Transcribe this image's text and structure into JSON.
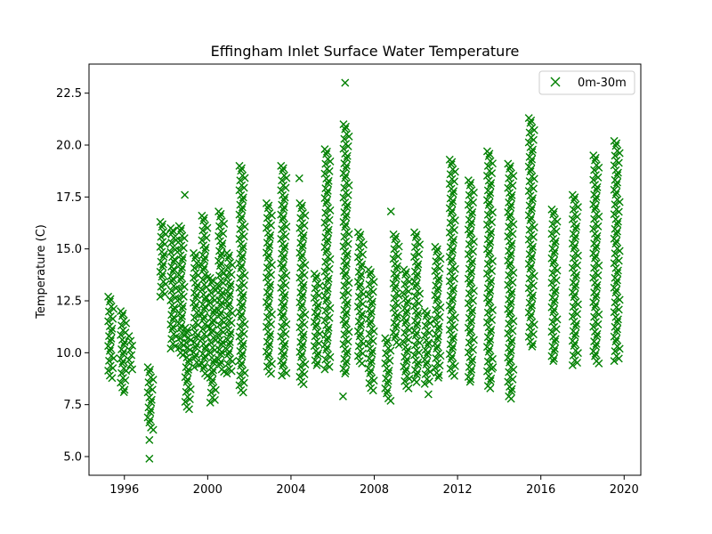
{
  "chart_data": {
    "type": "scatter",
    "title": "Effingham Inlet Surface Water Temperature",
    "xlabel": "",
    "ylabel": "Temperature (C)",
    "xlim": [
      1994.3,
      2020.8
    ],
    "ylim": [
      4.1,
      23.9
    ],
    "xticks": [
      1996,
      2000,
      2004,
      2008,
      2012,
      2016,
      2020
    ],
    "yticks": [
      5.0,
      7.5,
      10.0,
      12.5,
      15.0,
      17.5,
      20.0,
      22.5
    ],
    "grid": false,
    "legend": {
      "position": "top-right",
      "entries": [
        "0m-30m"
      ]
    },
    "marker": "x",
    "color": "#008000",
    "series": [
      {
        "name": "0m-30m",
        "columns": [
          {
            "x": 1995.3,
            "min": 8.9,
            "max": 12.7
          },
          {
            "x": 1995.9,
            "min": 8.1,
            "max": 12.0
          },
          {
            "x": 1996.3,
            "min": 9.2,
            "max": 10.8
          },
          {
            "x": 1997.2,
            "min": 6.4,
            "max": 9.3
          },
          {
            "x": 1997.8,
            "min": 12.7,
            "max": 16.3
          },
          {
            "x": 1998.3,
            "min": 10.2,
            "max": 16.0
          },
          {
            "x": 1998.7,
            "min": 10.0,
            "max": 16.1
          },
          {
            "x": 1999.0,
            "min": 7.4,
            "max": 11.2
          },
          {
            "x": 1999.4,
            "min": 9.3,
            "max": 14.8
          },
          {
            "x": 1999.8,
            "min": 9.0,
            "max": 16.6
          },
          {
            "x": 2000.2,
            "min": 7.6,
            "max": 13.6
          },
          {
            "x": 2000.6,
            "min": 9.2,
            "max": 16.8
          },
          {
            "x": 2001.0,
            "min": 9.0,
            "max": 14.8
          },
          {
            "x": 2001.6,
            "min": 8.2,
            "max": 19.0
          },
          {
            "x": 2002.9,
            "min": 9.1,
            "max": 17.2
          },
          {
            "x": 2003.6,
            "min": 8.9,
            "max": 19.0
          },
          {
            "x": 2004.5,
            "min": 8.6,
            "max": 17.2
          },
          {
            "x": 2005.2,
            "min": 9.4,
            "max": 13.8
          },
          {
            "x": 2005.7,
            "min": 9.2,
            "max": 19.8
          },
          {
            "x": 2006.6,
            "min": 9.0,
            "max": 21.0
          },
          {
            "x": 2007.3,
            "min": 9.6,
            "max": 15.8
          },
          {
            "x": 2007.8,
            "min": 8.3,
            "max": 14.0
          },
          {
            "x": 2008.6,
            "min": 7.8,
            "max": 10.7
          },
          {
            "x": 2009.0,
            "min": 10.5,
            "max": 15.7
          },
          {
            "x": 2009.5,
            "min": 8.4,
            "max": 14.0
          },
          {
            "x": 2010.0,
            "min": 8.7,
            "max": 15.8
          },
          {
            "x": 2010.5,
            "min": 8.5,
            "max": 12.0
          },
          {
            "x": 2011.0,
            "min": 8.8,
            "max": 15.1
          },
          {
            "x": 2011.7,
            "min": 9.0,
            "max": 19.3
          },
          {
            "x": 2012.6,
            "min": 8.6,
            "max": 18.3
          },
          {
            "x": 2013.5,
            "min": 8.4,
            "max": 19.7
          },
          {
            "x": 2014.5,
            "min": 7.9,
            "max": 19.1
          },
          {
            "x": 2015.5,
            "min": 10.3,
            "max": 21.3
          },
          {
            "x": 2016.6,
            "min": 9.6,
            "max": 16.9
          },
          {
            "x": 2017.6,
            "min": 9.4,
            "max": 17.6
          },
          {
            "x": 2018.6,
            "min": 9.6,
            "max": 19.5
          },
          {
            "x": 2019.6,
            "min": 9.6,
            "max": 20.2
          }
        ],
        "outliers": [
          {
            "x": 1997.2,
            "y": 5.8
          },
          {
            "x": 1997.2,
            "y": 4.9
          },
          {
            "x": 1998.9,
            "y": 17.6
          },
          {
            "x": 2004.4,
            "y": 18.4
          },
          {
            "x": 2006.5,
            "y": 7.9
          },
          {
            "x": 2006.6,
            "y": 23.0
          },
          {
            "x": 2008.8,
            "y": 16.8
          },
          {
            "x": 2010.6,
            "y": 8.0
          },
          {
            "x": 2013.7,
            "y": 9.3
          }
        ]
      }
    ]
  }
}
